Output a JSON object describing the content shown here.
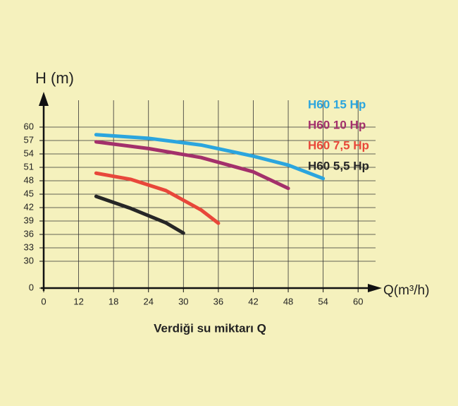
{
  "chart_data": {
    "type": "line",
    "title": "Verdiği su miktarı Q",
    "y_label": "H (m)",
    "x_label": "Q(m³/h)",
    "xlim": [
      0,
      63
    ],
    "x_break": [
      0,
      6
    ],
    "ylim": [
      0,
      66
    ],
    "y_break": [
      0,
      24
    ],
    "xticks": [
      0,
      12,
      18,
      24,
      30,
      36,
      42,
      48,
      54,
      60
    ],
    "yticks": [
      0,
      30,
      33,
      36,
      39,
      42,
      45,
      48,
      51,
      54,
      57,
      60
    ],
    "grid": true,
    "series": [
      {
        "name": "H60 15 Hp",
        "color": "#2ba5de",
        "x": [
          15,
          24,
          33,
          42,
          48,
          54
        ],
        "values": [
          58.3,
          57.5,
          56.0,
          53.5,
          51.5,
          48.5
        ]
      },
      {
        "name": "H60 10 Hp",
        "color": "#a3306b",
        "x": [
          15,
          24,
          33,
          42,
          48
        ],
        "values": [
          56.7,
          55.2,
          53.2,
          50.0,
          46.3
        ]
      },
      {
        "name": "H60 7,5 Hp",
        "color": "#e8473a",
        "x": [
          15,
          21,
          27,
          33,
          36
        ],
        "values": [
          49.7,
          48.3,
          45.8,
          41.5,
          38.5
        ]
      },
      {
        "name": "H60 5,5 Hp",
        "color": "#262626",
        "x": [
          15,
          21,
          27,
          30
        ],
        "values": [
          44.5,
          41.8,
          38.6,
          36.3
        ]
      }
    ]
  }
}
